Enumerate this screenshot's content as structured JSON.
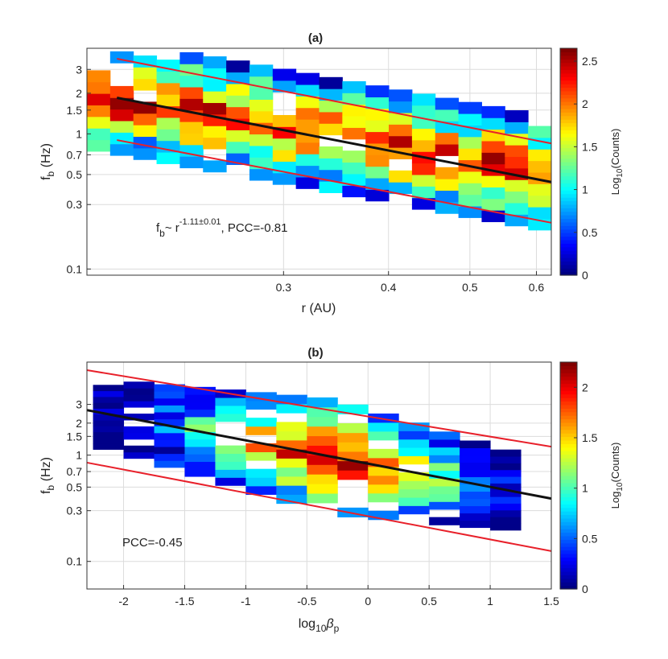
{
  "chart_data": [
    {
      "panel": "a",
      "type": "heatmap",
      "title": "(a)",
      "xlabel": "r (AU)",
      "ylabel": "f_b (Hz)",
      "x_scale": "log",
      "y_scale": "log",
      "xlim": [
        0.175,
        0.625
      ],
      "ylim": [
        0.09,
        4.3
      ],
      "x_ticks": [
        0.3,
        0.4,
        0.5,
        0.6
      ],
      "x_tick_labels": [
        "0.3",
        "0.4",
        "0.5",
        "0.6"
      ],
      "y_ticks": [
        0.1,
        0.3,
        0.5,
        0.7,
        1,
        1.5,
        2,
        3
      ],
      "y_tick_labels": [
        "0.1",
        "0.3",
        "0.5",
        "0.7",
        "1",
        "1.5",
        "2",
        "3"
      ],
      "colorbar": {
        "label": "Log10(Counts)",
        "range": [
          0,
          2.65
        ],
        "ticks": [
          0,
          0.5,
          1,
          1.5,
          2,
          2.5
        ],
        "tick_labels": [
          "0",
          "0.5",
          "1",
          "1.5",
          "2",
          "2.5"
        ]
      },
      "fit_line": {
        "x": [
          0.19,
          0.625
        ],
        "y": [
          1.85,
          0.44
        ]
      },
      "bound_lines": [
        {
          "x": [
            0.19,
            0.625
          ],
          "y": [
            3.6,
            0.85
          ]
        },
        {
          "x": [
            0.19,
            0.625
          ],
          "y": [
            0.9,
            0.22
          ]
        }
      ],
      "annotation": {
        "prefix": "f",
        "sub": "b",
        "mid": "~ r",
        "exp": "-1.11±0.01",
        "suffix": ", PCC=-0.81"
      },
      "grid": true
    },
    {
      "panel": "b",
      "type": "heatmap",
      "title": "(b)",
      "xlabel_main": "log",
      "xlabel_sub": "10",
      "xlabel_beta": "β",
      "xlabel_beta_sub": "p",
      "ylabel": "f_b (Hz)",
      "x_scale": "linear",
      "y_scale": "log",
      "xlim": [
        -2.3,
        1.5
      ],
      "ylim": [
        0.055,
        7.5
      ],
      "x_ticks": [
        -2,
        -1.5,
        -1,
        -0.5,
        0,
        0.5,
        1,
        1.5
      ],
      "x_tick_labels": [
        "-2",
        "-1.5",
        "-1",
        "-0.5",
        "0",
        "0.5",
        "1",
        "1.5"
      ],
      "y_ticks": [
        0.1,
        0.3,
        0.5,
        0.7,
        1,
        1.5,
        2,
        3
      ],
      "y_tick_labels": [
        "0.1",
        "0.3",
        "0.5",
        "0.7",
        "1",
        "1.5",
        "2",
        "3"
      ],
      "colorbar": {
        "label": "Log10(Counts)",
        "range": [
          0,
          2.25
        ],
        "ticks": [
          0,
          0.5,
          1,
          1.5,
          2
        ],
        "tick_labels": [
          "0",
          "0.5",
          "1",
          "1.5",
          "2"
        ]
      },
      "fit_line": {
        "x": [
          -2.3,
          1.5
        ],
        "y": [
          2.65,
          0.39
        ]
      },
      "bound_lines": [
        {
          "x": [
            -2.3,
            1.5
          ],
          "y": [
            6.3,
            1.2
          ]
        },
        {
          "x": [
            -2.3,
            1.5
          ],
          "y": [
            0.85,
            0.125
          ]
        }
      ],
      "annotation": {
        "text": "PCC=-0.45"
      },
      "grid": true
    }
  ],
  "colorbar_label_parts": {
    "main": "Log",
    "sub": "10",
    "rest": "(Counts)"
  },
  "ylabel_parts": {
    "main": "f",
    "sub": "b",
    "rest": " (Hz)"
  }
}
